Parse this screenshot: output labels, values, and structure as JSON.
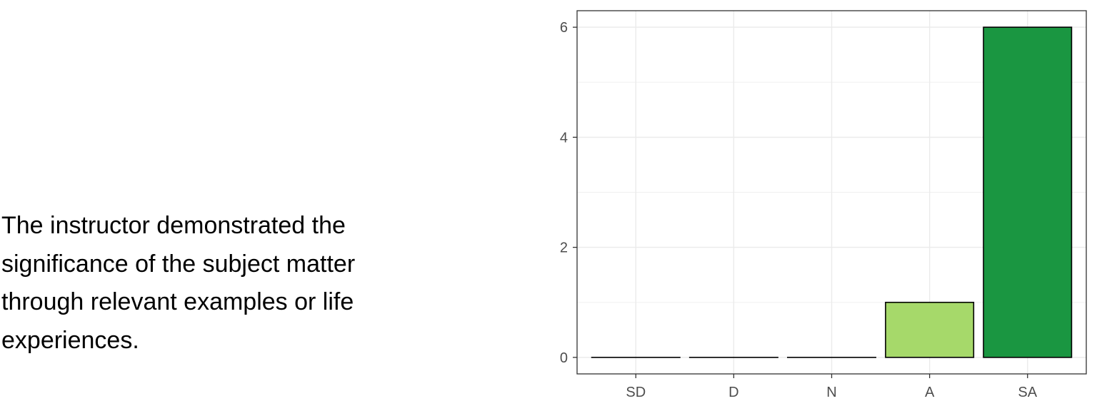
{
  "question": {
    "text": "The instructor demonstrated the significance of the subject matter through relevant examples or life experiences."
  },
  "chart_data": {
    "type": "bar",
    "title": "",
    "xlabel": "",
    "ylabel": "",
    "categories": [
      "SD",
      "D",
      "N",
      "A",
      "SA"
    ],
    "values": [
      0,
      0,
      0,
      1,
      6
    ],
    "colors": [
      "#ffffff",
      "#ffffff",
      "#ffffff",
      "#a6d96a",
      "#1a9641"
    ],
    "ylim": [
      -0.3,
      6.3
    ],
    "yticks": [
      0,
      2,
      4,
      6
    ],
    "grid": true,
    "legend": "none"
  }
}
